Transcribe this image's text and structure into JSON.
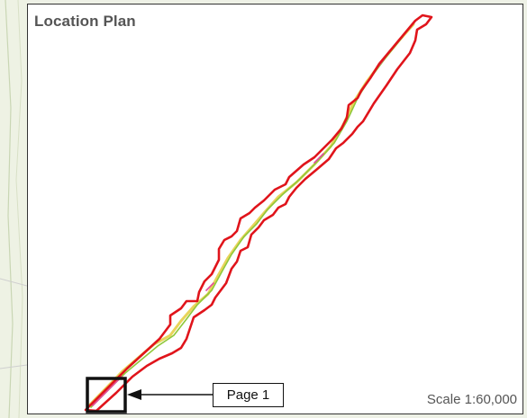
{
  "map": {
    "title": "Location Plan",
    "scale_label": "Scale 1:60,000",
    "page_label": "Page 1",
    "colors": {
      "boundary": "#e0141b",
      "feature_green": "#8fc83a",
      "feature_pink": "#e24a9c",
      "feature_yellow": "#e8d45a",
      "frame": "#333333",
      "text": "#555555"
    }
  }
}
